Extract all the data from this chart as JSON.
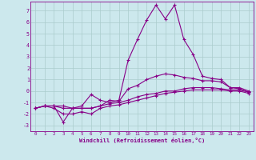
{
  "xlabel": "Windchill (Refroidissement éolien,°C)",
  "background_color": "#cce8ed",
  "line_color": "#880088",
  "grid_color": "#aacccc",
  "xlim": [
    -0.5,
    23.5
  ],
  "ylim": [
    -3.5,
    7.8
  ],
  "yticks": [
    -3,
    -2,
    -1,
    0,
    1,
    2,
    3,
    4,
    5,
    6,
    7
  ],
  "xticks": [
    0,
    1,
    2,
    3,
    4,
    5,
    6,
    7,
    8,
    9,
    10,
    11,
    12,
    13,
    14,
    15,
    16,
    17,
    18,
    19,
    20,
    21,
    22,
    23
  ],
  "line1_x": [
    0,
    1,
    2,
    3,
    4,
    5,
    6,
    7,
    8,
    9,
    10,
    11,
    12,
    13,
    14,
    15,
    16,
    17,
    18,
    19,
    20,
    21,
    22,
    23
  ],
  "line1_y": [
    -1.5,
    -1.3,
    -1.3,
    -2.7,
    -1.5,
    -1.3,
    -0.3,
    -0.8,
    -1.0,
    -0.8,
    2.7,
    4.5,
    6.2,
    7.5,
    6.3,
    7.5,
    4.5,
    3.2,
    1.3,
    1.1,
    1.0,
    0.3,
    0.2,
    -0.1
  ],
  "line2_x": [
    0,
    1,
    2,
    3,
    4,
    5,
    6,
    7,
    8,
    9,
    10,
    11,
    12,
    13,
    14,
    15,
    16,
    17,
    18,
    19,
    20,
    21,
    22,
    23
  ],
  "line2_y": [
    -1.5,
    -1.3,
    -1.3,
    -1.3,
    -1.5,
    -1.5,
    -1.5,
    -1.3,
    -0.8,
    -0.9,
    0.2,
    0.5,
    1.0,
    1.3,
    1.5,
    1.4,
    1.2,
    1.1,
    0.9,
    0.9,
    0.8,
    0.3,
    0.3,
    0.0
  ],
  "line3_x": [
    0,
    1,
    2,
    3,
    4,
    5,
    6,
    7,
    8,
    9,
    10,
    11,
    12,
    13,
    14,
    15,
    16,
    17,
    18,
    19,
    20,
    21,
    22,
    23
  ],
  "line3_y": [
    -1.5,
    -1.3,
    -1.3,
    -1.5,
    -1.5,
    -1.5,
    -1.5,
    -1.3,
    -1.1,
    -1.0,
    -0.8,
    -0.5,
    -0.3,
    -0.2,
    0.0,
    0.0,
    0.2,
    0.3,
    0.3,
    0.3,
    0.2,
    0.1,
    0.1,
    -0.1
  ],
  "line4_x": [
    0,
    1,
    2,
    3,
    4,
    5,
    6,
    7,
    8,
    9,
    10,
    11,
    12,
    13,
    14,
    15,
    16,
    17,
    18,
    19,
    20,
    21,
    22,
    23
  ],
  "line4_y": [
    -1.5,
    -1.3,
    -1.5,
    -2.0,
    -2.0,
    -1.8,
    -2.0,
    -1.5,
    -1.3,
    -1.2,
    -1.0,
    -0.8,
    -0.6,
    -0.4,
    -0.2,
    -0.1,
    0.0,
    0.1,
    0.1,
    0.1,
    0.1,
    0.0,
    0.0,
    -0.2
  ]
}
